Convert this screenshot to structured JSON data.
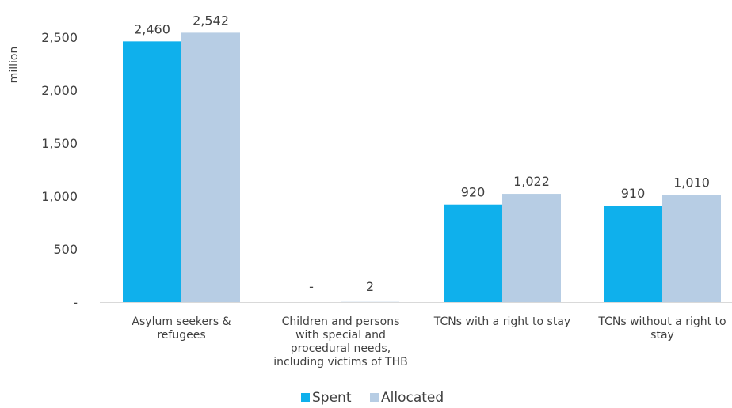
{
  "chart_data": {
    "type": "bar",
    "ylabel": "million",
    "ylim": [
      0,
      2700
    ],
    "ytick_values": [
      0,
      500,
      1000,
      1500,
      2000,
      2500
    ],
    "ytick_labels": [
      "-",
      "500",
      "1,000",
      "1,500",
      "2,000",
      "2,500"
    ],
    "categories": [
      [
        "Asylum seekers &",
        "refugees"
      ],
      [
        "Children and persons",
        "with special and",
        "procedural needs,",
        "including victims of THB"
      ],
      [
        "TCNs with a right to stay"
      ],
      [
        "TCNs without a right to",
        "stay"
      ]
    ],
    "series": [
      {
        "name": "Spent",
        "color": "#0fb0ec",
        "values": [
          2460,
          0,
          920,
          910
        ],
        "labels": [
          "2,460",
          "-",
          "920",
          "910"
        ]
      },
      {
        "name": "Allocated",
        "color": "#b7cde4",
        "values": [
          2542,
          2,
          1022,
          1010
        ],
        "labels": [
          "2,542",
          "2",
          "1,022",
          "1,010"
        ]
      }
    ],
    "grid": false,
    "legend": "bottom"
  }
}
